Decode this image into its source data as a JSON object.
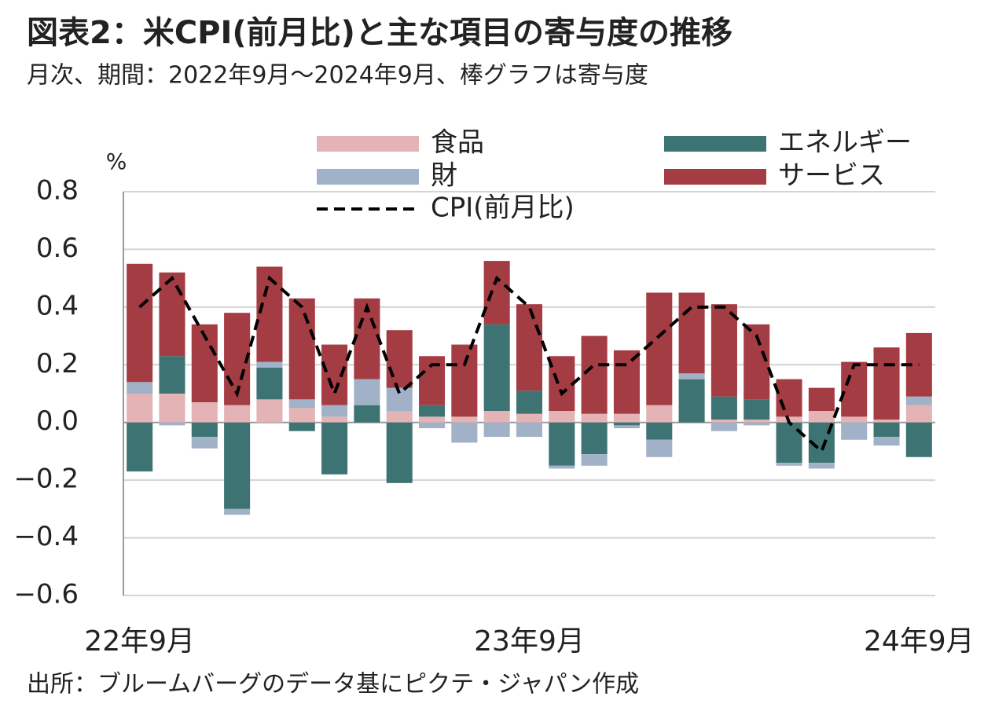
{
  "chart_data": {
    "type": "bar",
    "stacked": true,
    "title": "図表2：米CPI(前月比)と主な項目の寄与度の推移",
    "subtitle": "月次、期間：2022年9月～2024年9月、棒グラフは寄与度",
    "y_unit": "%",
    "source": "出所：ブルームバーグのデータ基にピクテ・ジャパン作成",
    "categories": [
      "22年9月",
      null,
      null,
      null,
      null,
      null,
      null,
      null,
      null,
      null,
      null,
      null,
      "23年9月",
      null,
      null,
      null,
      null,
      null,
      null,
      null,
      null,
      null,
      null,
      null,
      "24年9月"
    ],
    "series": [
      {
        "name": "食品",
        "type": "bar",
        "color": "#e3b3b5",
        "values": [
          0.1,
          0.1,
          0.07,
          0.06,
          0.08,
          0.05,
          0.02,
          0.0,
          0.04,
          0.02,
          0.02,
          0.04,
          0.03,
          0.04,
          0.03,
          0.03,
          0.06,
          0.0,
          0.01,
          0.01,
          0.02,
          0.04,
          0.02,
          0.01,
          0.06
        ]
      },
      {
        "name": "エネルギー",
        "type": "bar",
        "color": "#3e7374",
        "values": [
          -0.17,
          0.13,
          -0.05,
          -0.3,
          0.11,
          -0.03,
          -0.18,
          0.06,
          -0.21,
          0.04,
          0.0,
          0.3,
          0.08,
          -0.15,
          -0.11,
          -0.01,
          -0.06,
          0.15,
          0.08,
          0.07,
          -0.14,
          -0.14,
          0.0,
          -0.05,
          -0.12
        ]
      },
      {
        "name": "財",
        "type": "bar",
        "color": "#a1b1c7",
        "values": [
          0.04,
          -0.01,
          -0.04,
          -0.02,
          0.02,
          0.03,
          0.04,
          0.09,
          0.08,
          -0.02,
          -0.07,
          -0.05,
          -0.05,
          -0.01,
          -0.04,
          -0.01,
          -0.06,
          0.02,
          -0.03,
          -0.01,
          -0.01,
          -0.02,
          -0.06,
          -0.03,
          0.03
        ]
      },
      {
        "name": "サービス",
        "type": "bar",
        "color": "#a33c43",
        "values": [
          0.41,
          0.29,
          0.27,
          0.32,
          0.33,
          0.35,
          0.21,
          0.28,
          0.2,
          0.17,
          0.25,
          0.22,
          0.3,
          0.19,
          0.27,
          0.22,
          0.39,
          0.28,
          0.32,
          0.26,
          0.13,
          0.08,
          0.19,
          0.25,
          0.22
        ]
      },
      {
        "name": "CPI(前月比)",
        "type": "line",
        "color": "#000000",
        "dashed": true,
        "values": [
          0.4,
          0.5,
          0.3,
          0.1,
          0.5,
          0.4,
          0.1,
          0.4,
          0.1,
          0.2,
          0.2,
          0.5,
          0.4,
          0.1,
          0.2,
          0.2,
          0.3,
          0.4,
          0.4,
          0.3,
          0.0,
          -0.1,
          0.2,
          0.2,
          0.2
        ]
      }
    ],
    "ylim": [
      -0.6,
      0.8
    ],
    "yticks": [
      {
        "value": -0.6,
        "label": "−0.6"
      },
      {
        "value": -0.4,
        "label": "−0.4"
      },
      {
        "value": -0.2,
        "label": "−0.2"
      },
      {
        "value": 0,
        "label": "0.0"
      },
      0.2,
      0.4,
      0.6,
      0.8
    ],
    "grid": true,
    "legend": "top"
  }
}
